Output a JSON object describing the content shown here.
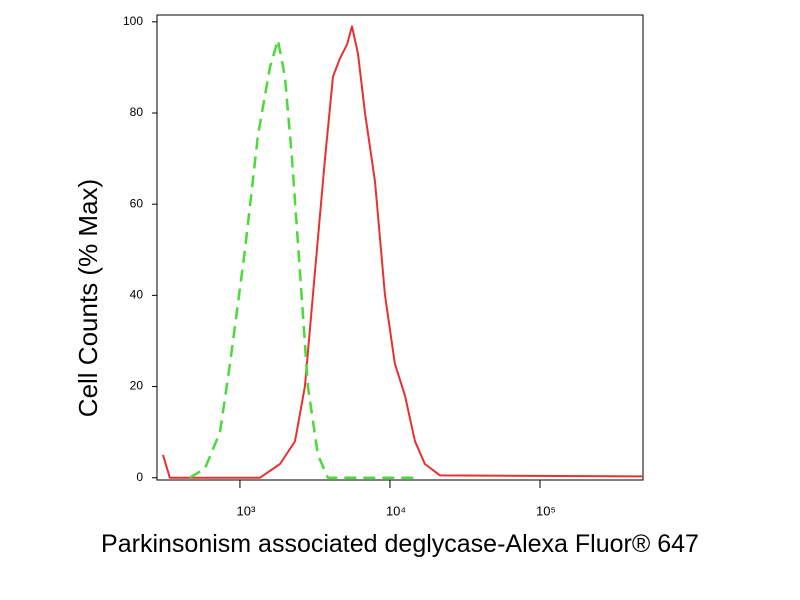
{
  "chart_data": {
    "type": "line",
    "x_label": "Parkinsonism associated deglycase-Alexa Fluor® 647",
    "y_label": "Cell Counts (% Max)",
    "xscale": "log",
    "xlim": [
      280,
      486000
    ],
    "ylim": [
      -0.5,
      101.5
    ],
    "xticks": [
      {
        "value": 1000,
        "label": "10³"
      },
      {
        "value": 10000,
        "label": "10⁴"
      },
      {
        "value": 100000,
        "label": "10⁵"
      }
    ],
    "yticks": [
      0,
      20,
      40,
      60,
      80,
      100
    ],
    "series": [
      {
        "color": "#e8312f",
        "dashed": false,
        "x": [
          307,
          341,
          1360,
          1848,
          2328,
          2712,
          3162,
          3687,
          4169,
          4642,
          5168,
          5583,
          6124,
          6813,
          7943,
          9268,
          10790,
          12590,
          14690,
          17100,
          21540,
          486000
        ],
        "values": [
          5,
          0,
          0,
          3,
          8,
          20,
          45,
          70,
          88,
          92,
          95,
          99,
          93,
          80,
          65,
          40,
          25,
          18,
          8,
          3,
          0.5,
          0.3
        ]
      },
      {
        "color": "#4cd93a",
        "dashed": true,
        "x": [
          464,
          584,
          736,
          858,
          1080,
          1318,
          1585,
          1792,
          1995,
          2222,
          2512,
          2840,
          3311,
          3860,
          15850
        ],
        "values": [
          0,
          2,
          10,
          25,
          50,
          75,
          90,
          96,
          88,
          70,
          45,
          20,
          5,
          0,
          0
        ]
      }
    ]
  }
}
